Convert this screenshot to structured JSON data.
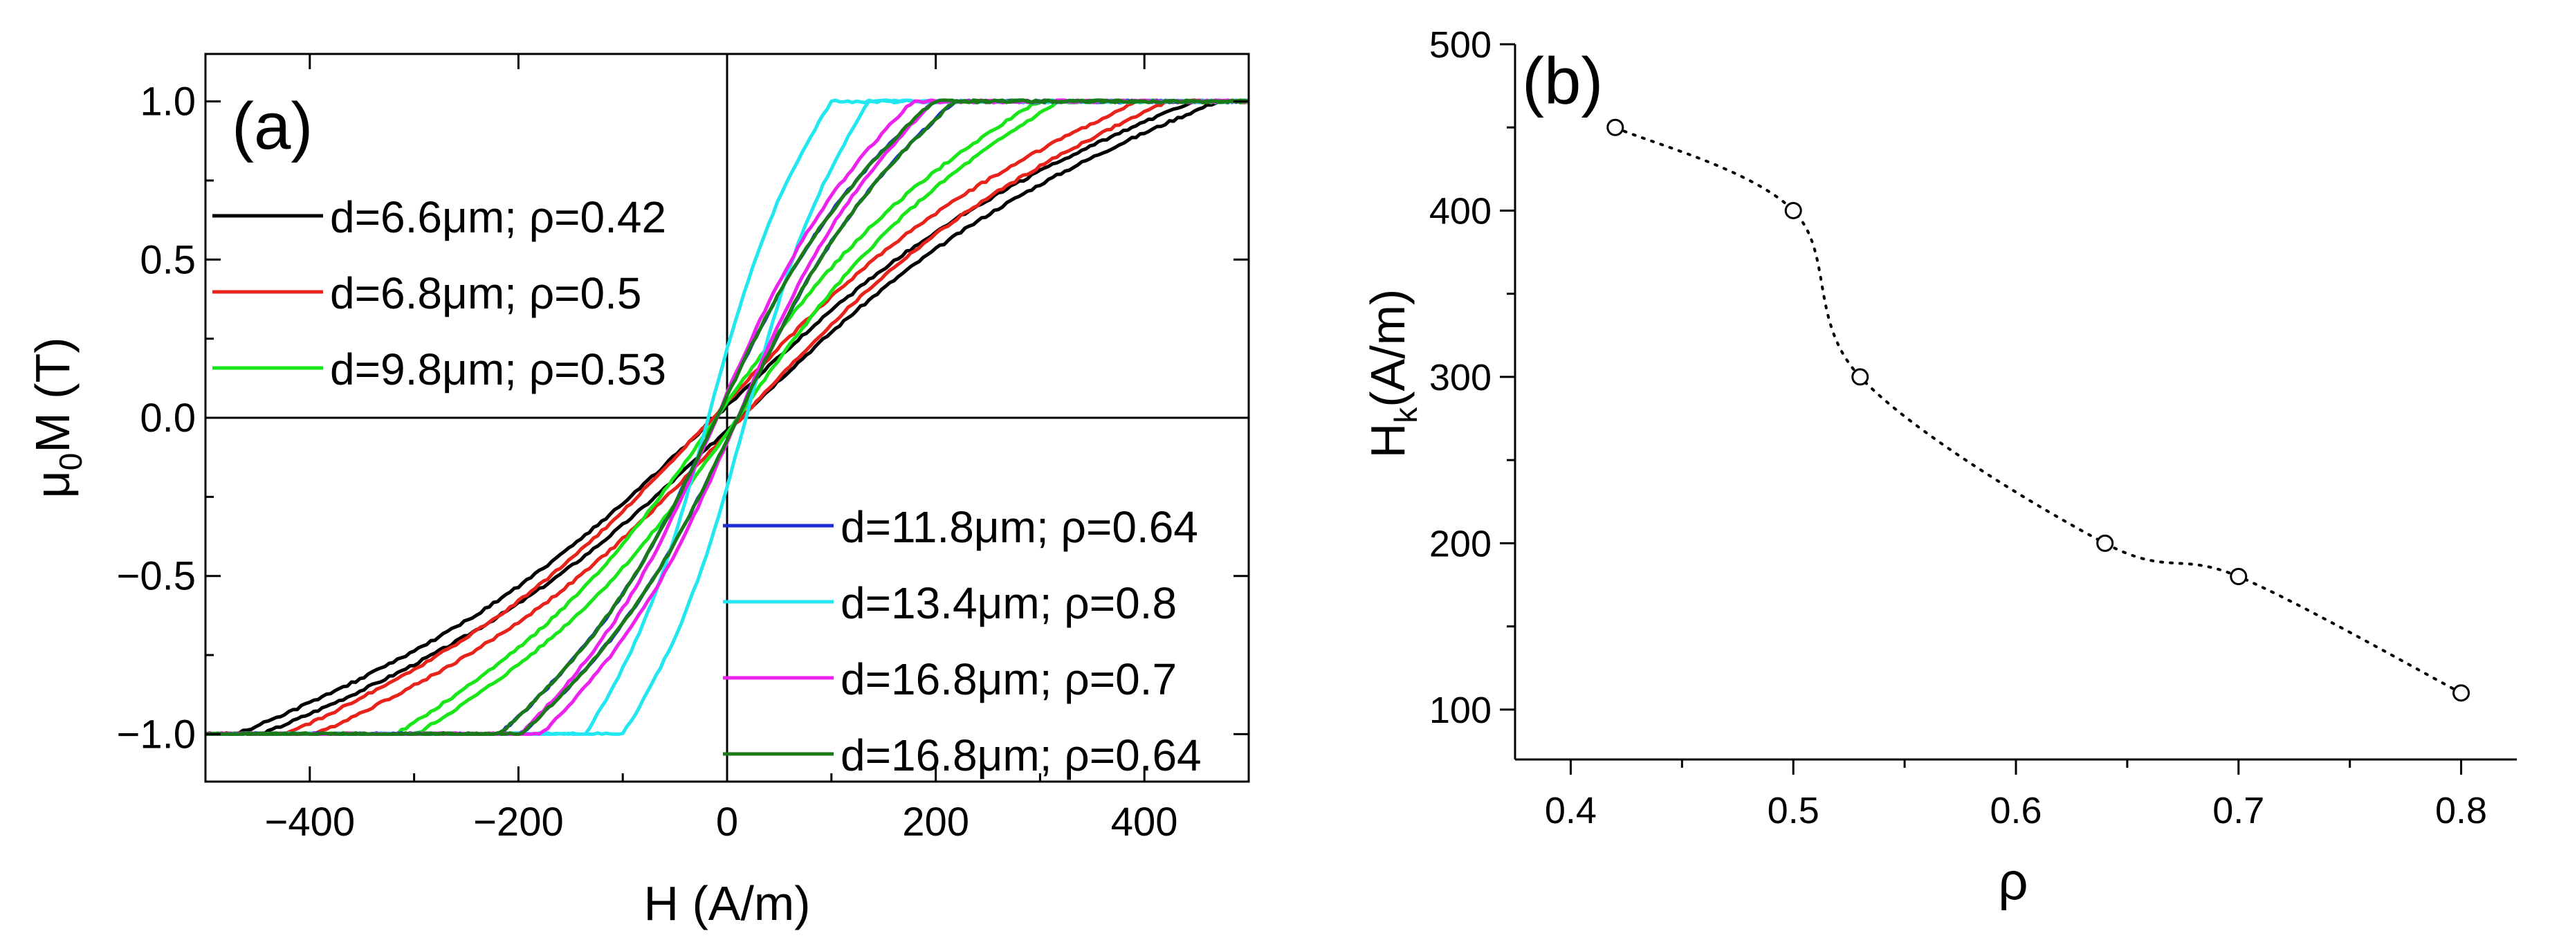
{
  "chart_data": [
    {
      "type": "line",
      "panel_label": "(a)",
      "xlabel": "H (A/m)",
      "ylabel_main": "μ",
      "ylabel_sub": "0",
      "ylabel_rest": "M (T)",
      "xlim": [
        -500,
        500
      ],
      "ylim": [
        -1.15,
        1.15
      ],
      "xticks": [
        -400,
        -200,
        0,
        200,
        400
      ],
      "xtick_labels": [
        "−400",
        "−200",
        "0",
        "200",
        "400"
      ],
      "yticks": [
        -1.0,
        -0.5,
        0.0,
        0.5,
        1.0
      ],
      "ytick_labels": [
        "−1.0",
        "−0.5",
        "0.0",
        "0.5",
        "1.0"
      ],
      "series": [
        {
          "name": "d=6.6μm; ρ=0.42",
          "color": "#000000",
          "hk": 450,
          "coercivity": 12,
          "legend_group": "left"
        },
        {
          "name": "d=6.8μm; ρ=0.5",
          "color": "#e8231b",
          "hk": 400,
          "coercivity": 14,
          "legend_group": "left"
        },
        {
          "name": "d=9.8μm; ρ=0.53",
          "color": "#19e619",
          "hk": 300,
          "coercivity": 10,
          "legend_group": "left"
        },
        {
          "name": "d=11.8μm; ρ=0.64",
          "color": "#1c2fd6",
          "hk": 200,
          "coercivity": 10,
          "legend_group": "right"
        },
        {
          "name": "d=13.4μm; ρ=0.8",
          "color": "#22e6f0",
          "hk": 110,
          "coercivity": 18,
          "legend_group": "right"
        },
        {
          "name": "d=16.8μm; ρ=0.7",
          "color": "#ee22ee",
          "hk": 180,
          "coercivity": 10,
          "legend_group": "right"
        },
        {
          "name": "d=16.8μm; ρ=0.64",
          "color": "#1a7a1a",
          "hk": 200,
          "coercivity": 10,
          "legend_group": "right"
        }
      ]
    },
    {
      "type": "scatter",
      "panel_label": "(b)",
      "xlabel": "ρ",
      "ylabel_main": "H",
      "ylabel_sub": "k",
      "ylabel_rest": "(A/m)",
      "xlim": [
        0.375,
        0.825
      ],
      "ylim": [
        70,
        500
      ],
      "xticks": [
        0.4,
        0.5,
        0.6,
        0.7,
        0.8
      ],
      "xtick_labels": [
        "0.4",
        "0.5",
        "0.6",
        "0.7",
        "0.8"
      ],
      "yticks": [
        100,
        200,
        300,
        400,
        500
      ],
      "ytick_labels": [
        "100",
        "200",
        "300",
        "400",
        "500"
      ],
      "x": [
        0.42,
        0.5,
        0.53,
        0.64,
        0.7,
        0.8
      ],
      "y": [
        450,
        400,
        300,
        200,
        180,
        110
      ],
      "fit_line": "dotted"
    }
  ]
}
